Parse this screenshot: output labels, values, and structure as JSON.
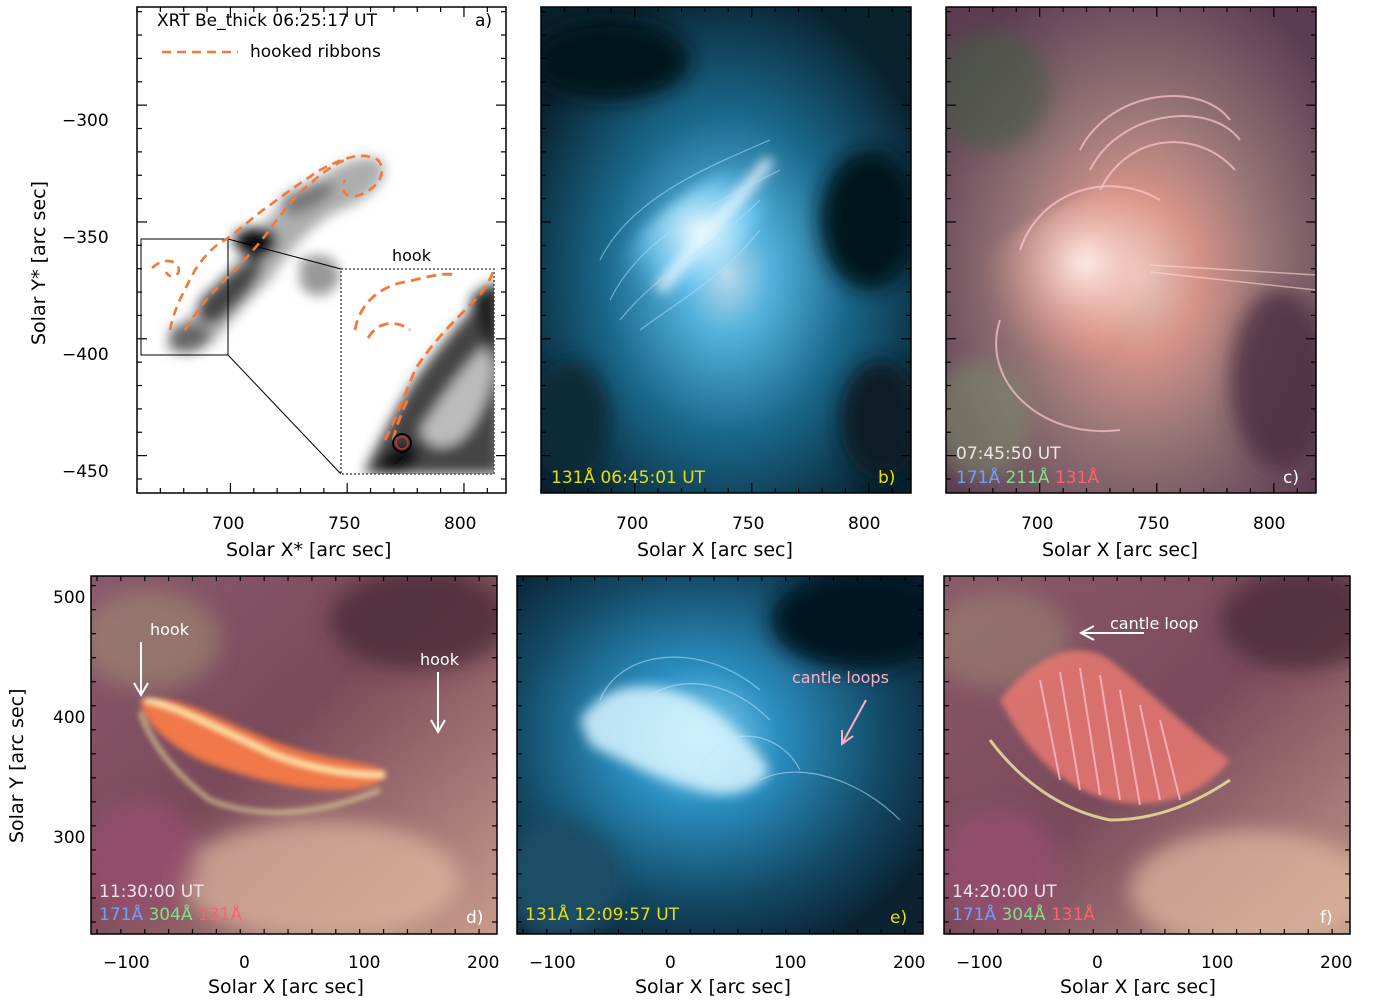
{
  "panels": {
    "a": {
      "title": "XRT Be_thick 06:25:17 UT",
      "legend": "hooked ribbons",
      "letter": "a)",
      "hook_label": "hook",
      "xlabel": "Solar X* [arc sec]",
      "ylabel": "Solar Y* [arc sec]",
      "xticks": [
        "700",
        "750",
        "800"
      ],
      "yticks": [
        "−300",
        "−350",
        "−400",
        "−450"
      ],
      "ribbon_color": "#f07a3a"
    },
    "b": {
      "caption": "131Å 06:45:01 UT",
      "letter": "b)",
      "xlabel": "Solar X [arc sec]",
      "xticks": [
        "700",
        "750",
        "800"
      ],
      "caption_color": "#e8e000"
    },
    "c": {
      "time": "07:45:50 UT",
      "ch1": "171Å",
      "ch2": "211Å",
      "ch3": "131Å",
      "letter": "c)",
      "xlabel": "Solar X [arc sec]",
      "xticks": [
        "700",
        "750",
        "800"
      ]
    },
    "d": {
      "hook_left": "hook",
      "hook_right": "hook",
      "time": "11:30:00 UT",
      "ch1": "171Å",
      "ch2": "304Å",
      "ch3": "131Å",
      "letter": "d)",
      "xlabel": "Solar X [arc sec]",
      "ylabel": "Solar Y [arc sec]",
      "xticks": [
        "−100",
        "0",
        "100",
        "200"
      ],
      "yticks": [
        "500",
        "400",
        "300"
      ]
    },
    "e": {
      "caption": "131Å 12:09:57 UT",
      "annotation": "cantle loops",
      "letter": "e)",
      "xlabel": "Solar X [arc sec]",
      "xticks": [
        "−100",
        "0",
        "100",
        "200"
      ]
    },
    "f": {
      "annotation": "cantle loop",
      "time": "14:20:00 UT",
      "ch1": "171Å",
      "ch2": "304Å",
      "ch3": "131Å",
      "letter": "f)",
      "xlabel": "Solar X [arc sec]",
      "xticks": [
        "−100",
        "0",
        "100",
        "200"
      ]
    }
  },
  "colors": {
    "aia171": "#6fa0ff",
    "aia211": "#7fe08a",
    "aia304": "#7fe08a",
    "aia131": "#ff6070",
    "time_text": "#e8e8e8",
    "e_caption": "#e8e000",
    "pink_annot": "#ffb0c0"
  }
}
